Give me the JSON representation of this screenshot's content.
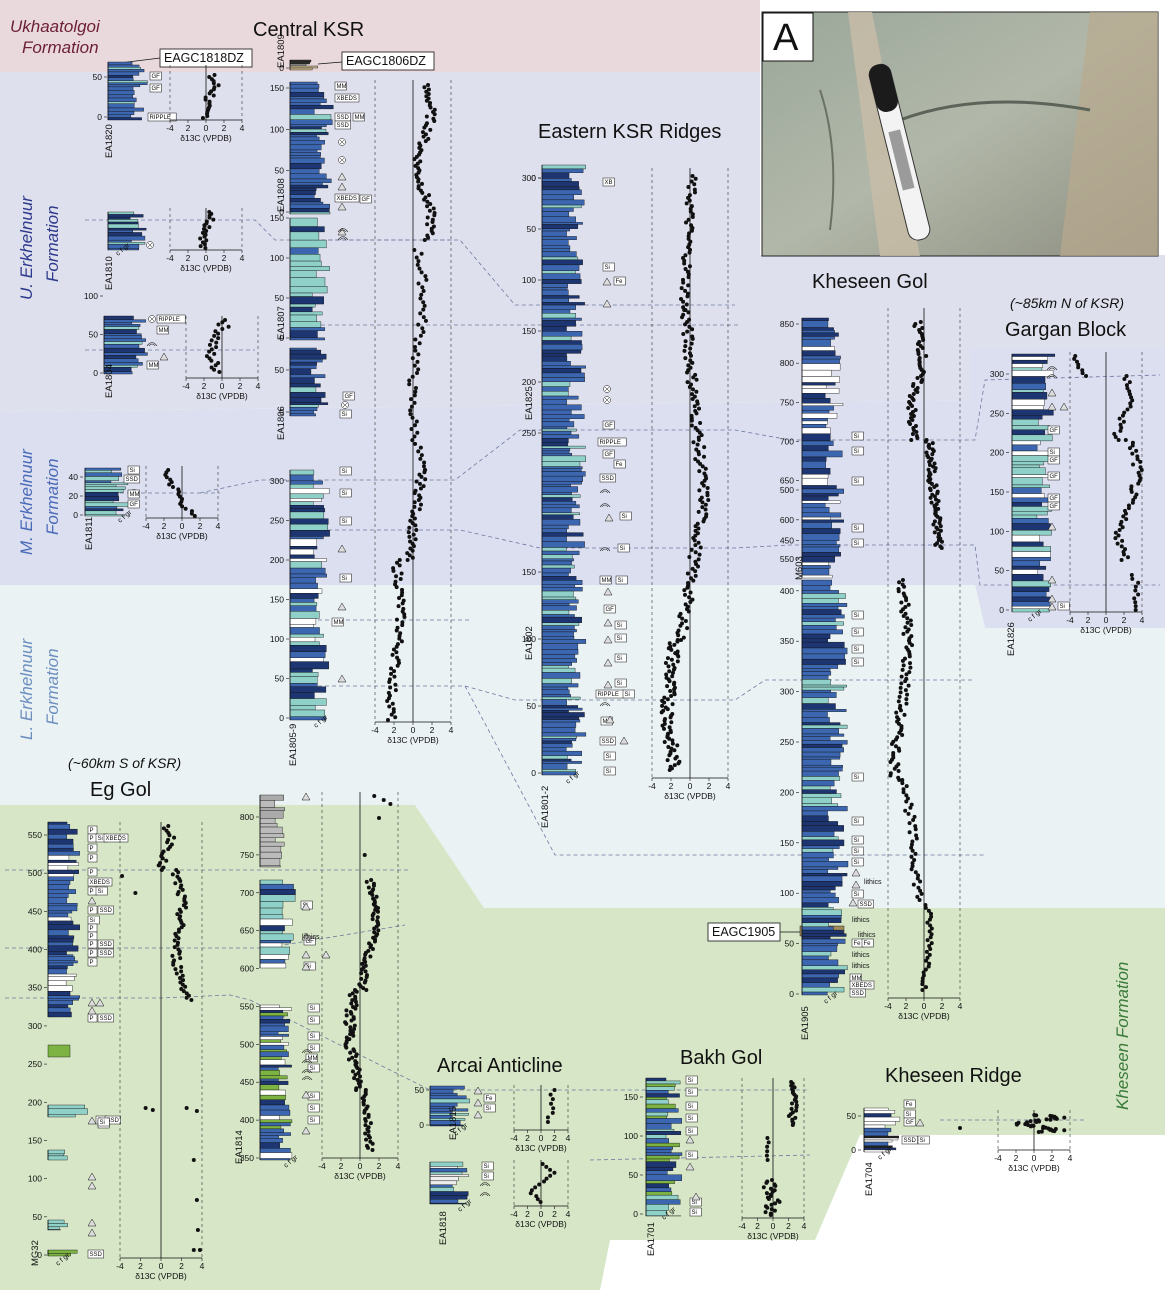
{
  "colors": {
    "ukhaatolgoi_band": "#ead9dc",
    "upper_band": "#dfe0ed",
    "middle_band": "#dcdff0",
    "lower_band": "#eaf2f4",
    "kheseen_band": "#d6e6c6",
    "upper_text": "#2d3a8c",
    "middle_text": "#4a6bb7",
    "lower_text": "#6d8fbf",
    "kheseen_text": "#3a7a3a",
    "ukh_text": "#6b1f35",
    "carbonate_blue": "#3c66b0",
    "dark_blue": "#1d3570",
    "teal": "#8fd1c8",
    "green": "#7cb342",
    "gray": "#9a9a9a"
  },
  "formations": {
    "ukhaatolgoi": [
      "Ukhaatolgoi",
      "Formation"
    ],
    "upper": [
      "U. Erkhelnuur",
      "Formation"
    ],
    "middle": [
      "M. Erkhelnuur",
      "Formation"
    ],
    "lower": [
      "L. Erkhelnuur",
      "Formation"
    ],
    "kheseen": "Kheseen Formation"
  },
  "groups": {
    "central": "Central KSR",
    "eastern": "Eastern KSR Ridges",
    "kheseen_gol": "Kheseen Gol",
    "gargan_note": "(~85km N of KSR)",
    "gargan": "Gargan Block",
    "eg_note": "(~60km S of KSR)",
    "eg": "Eg Gol",
    "arcai": "Arcai Anticline",
    "bakh": "Bakh Gol",
    "kheseen_ridge": "Kheseen Ridge"
  },
  "photo": {
    "label": "A",
    "icon": "outcrop-photo-with-marker"
  },
  "samples": {
    "s1": "EAGC1818DZ",
    "s2": "EAGC1806DZ",
    "s3": "EAGC1905"
  },
  "axis_label": "δ13C (VPDB)",
  "sections": {
    "EA1820": {
      "name": "EA1820",
      "ticks": [
        "0",
        "50"
      ],
      "xticks": [
        "-4",
        "2",
        "0",
        "2",
        "4"
      ]
    },
    "EA1810": {
      "name": "EA1810",
      "xticks": [
        "-4",
        "2",
        "0",
        "2",
        "4"
      ]
    },
    "EA1804": {
      "name": "EA1804",
      "ticks": [
        "0",
        "50",
        "100"
      ],
      "xticks": [
        "-4",
        "2",
        "0",
        "2",
        "4"
      ]
    },
    "EA1811": {
      "name": "EA1811",
      "ticks": [
        "0",
        "20",
        "40"
      ],
      "xticks": [
        "-4",
        "2",
        "0",
        "2",
        "4"
      ]
    },
    "EA1809": {
      "name": "EA1809",
      "ticks": [
        "0"
      ]
    },
    "EA1808": {
      "name": "EA1808",
      "ticks": [
        "0",
        "50",
        "100",
        "150"
      ]
    },
    "EA1807": {
      "name": "EA1807",
      "ticks": [
        "0",
        "50",
        "100",
        "150"
      ]
    },
    "EA1806": {
      "name": "EA1806",
      "ticks": [
        "0",
        "50"
      ]
    },
    "EA1805-9": {
      "name": "EA1805-9",
      "ticks": [
        "0",
        "50",
        "100",
        "150",
        "200",
        "250",
        "300"
      ],
      "xticks": [
        "-4",
        "2",
        "0",
        "2",
        "4"
      ]
    },
    "EA1825": {
      "name": "EA1825",
      "ticks": [
        "0",
        "50",
        "100",
        "150",
        "200",
        "250",
        "300"
      ]
    },
    "EA1802": {
      "name": "EA1802",
      "ticks": [
        "0",
        "50",
        "100",
        "150",
        "200",
        "250"
      ]
    },
    "EA1801-2": {
      "name": "EA1801-2",
      "ticks": [
        "0",
        "50",
        "100",
        "150"
      ],
      "xticks": [
        "-4",
        "2",
        "0",
        "2",
        "4"
      ]
    },
    "M603": {
      "name": "M603",
      "ticks": [
        "550",
        "600",
        "650",
        "700",
        "750",
        "800",
        "850"
      ]
    },
    "EA1905": {
      "name": "EA1905",
      "ticks": [
        "0",
        "50",
        "100",
        "150",
        "200",
        "250",
        "300",
        "350",
        "400",
        "450",
        "500"
      ],
      "xticks": [
        "-4",
        "2",
        "0",
        "2",
        "4"
      ]
    },
    "EA1826": {
      "name": "EA1826",
      "ticks": [
        "0",
        "50",
        "100",
        "150",
        "200",
        "250",
        "300"
      ],
      "xticks": [
        "-4",
        "2",
        "0",
        "2",
        "4"
      ]
    },
    "MG32": {
      "name": "MG32",
      "ticks": [
        "0",
        "50",
        "100",
        "150",
        "200",
        "250",
        "300",
        "350",
        "400",
        "450",
        "500",
        "550"
      ],
      "xticks": [
        "-4",
        "2",
        "0",
        "2",
        "4"
      ]
    },
    "EA1814": {
      "name": "EA1814",
      "ticks": [
        "350",
        "400",
        "450",
        "500",
        "550",
        "600",
        "650",
        "700",
        "750",
        "800"
      ],
      "xticks": [
        "-4",
        "2",
        "0",
        "2",
        "4"
      ]
    },
    "EA1815": {
      "name": "EA1815",
      "ticks": [
        "0",
        "50"
      ],
      "xticks": [
        "-4",
        "2",
        "0",
        "2",
        "4"
      ]
    },
    "EA1818": {
      "name": "EA1818",
      "xticks": [
        "-4",
        "2",
        "0",
        "2",
        "4"
      ]
    },
    "EA1701": {
      "name": "EA1701",
      "ticks": [
        "0",
        "50",
        "100",
        "150"
      ],
      "xticks": [
        "-4",
        "2",
        "0",
        "2",
        "4"
      ]
    },
    "EA1704": {
      "name": "EA1704",
      "ticks": [
        "0",
        "50"
      ],
      "xticks": [
        "-4",
        "2",
        "0",
        "2",
        "4"
      ]
    }
  },
  "symbols": {
    "ripple": "RIPPLE",
    "mm": "MM",
    "xbeds": "XBEDS",
    "ssd": "SSD",
    "gf": "GF",
    "xb": "XB",
    "si": "Si",
    "fe": "Fe",
    "lithics": "lithics",
    "p": "P"
  }
}
